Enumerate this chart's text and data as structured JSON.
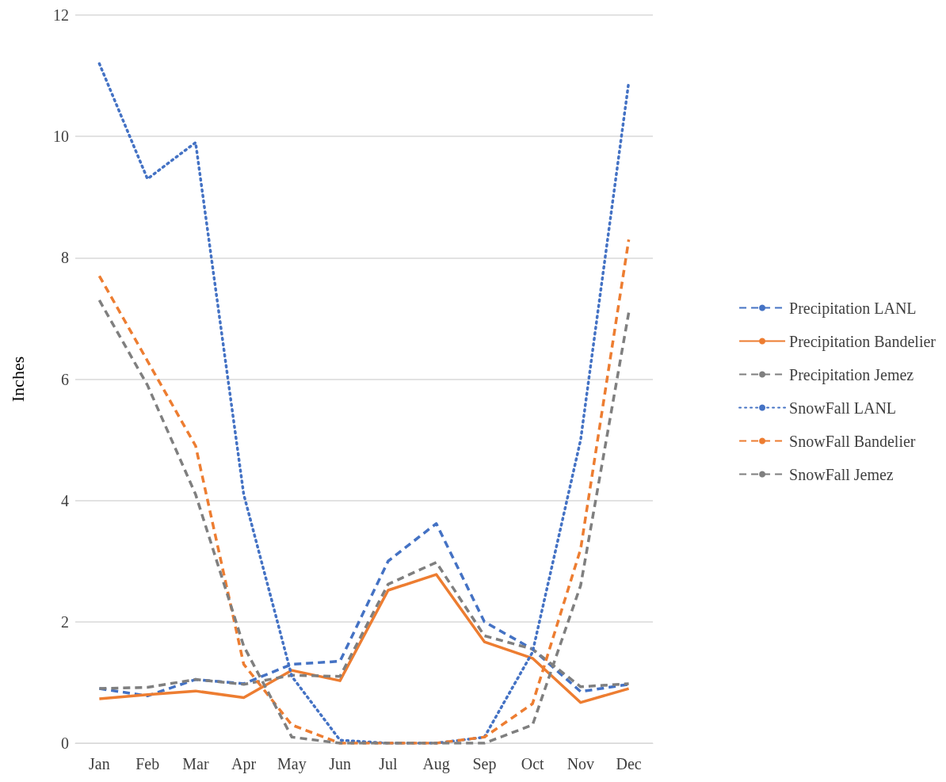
{
  "chart_data": {
    "type": "line",
    "ylabel": "Inches",
    "categories": [
      "Jan",
      "Feb",
      "Mar",
      "Apr",
      "May",
      "Jun",
      "Jul",
      "Aug",
      "Sep",
      "Oct",
      "Nov",
      "Dec"
    ],
    "series": [
      {
        "name": "Precipitation LANL",
        "color": "#4472c4",
        "line_style": "dashed",
        "values": [
          0.9,
          0.78,
          1.05,
          0.98,
          1.3,
          1.35,
          3.0,
          3.62,
          2.0,
          1.55,
          0.85,
          0.97
        ]
      },
      {
        "name": "Precipitation Bandelier",
        "color": "#ed7d31",
        "line_style": "solid",
        "values": [
          0.73,
          0.8,
          0.86,
          0.75,
          1.2,
          1.03,
          2.52,
          2.78,
          1.67,
          1.4,
          0.67,
          0.9
        ]
      },
      {
        "name": "Precipitation Jemez",
        "color": "#7f7f7f",
        "line_style": "dashed",
        "values": [
          0.9,
          0.92,
          1.05,
          0.97,
          1.12,
          1.1,
          2.62,
          2.98,
          1.77,
          1.55,
          0.93,
          0.98
        ]
      },
      {
        "name": "SnowFall LANL",
        "color": "#4472c4",
        "line_style": "dotted",
        "values": [
          11.2,
          9.3,
          9.9,
          4.1,
          1.1,
          0.05,
          0,
          0,
          0.1,
          1.5,
          5.0,
          10.9
        ]
      },
      {
        "name": "SnowFall Bandelier",
        "color": "#ed7d31",
        "line_style": "dashed",
        "values": [
          7.7,
          6.3,
          4.9,
          1.3,
          0.3,
          0,
          0,
          0,
          0.1,
          0.65,
          3.2,
          8.3
        ]
      },
      {
        "name": "SnowFall Jemez",
        "color": "#7f7f7f",
        "line_style": "dashed",
        "values": [
          7.3,
          5.9,
          4.1,
          1.6,
          0.1,
          0,
          0,
          0,
          0,
          0.3,
          2.6,
          7.1
        ]
      }
    ],
    "ylim": [
      0,
      12
    ],
    "yticks": [
      0,
      2,
      4,
      6,
      8,
      10,
      12
    ],
    "grid": "y",
    "legend": "right",
    "marker": "none"
  }
}
